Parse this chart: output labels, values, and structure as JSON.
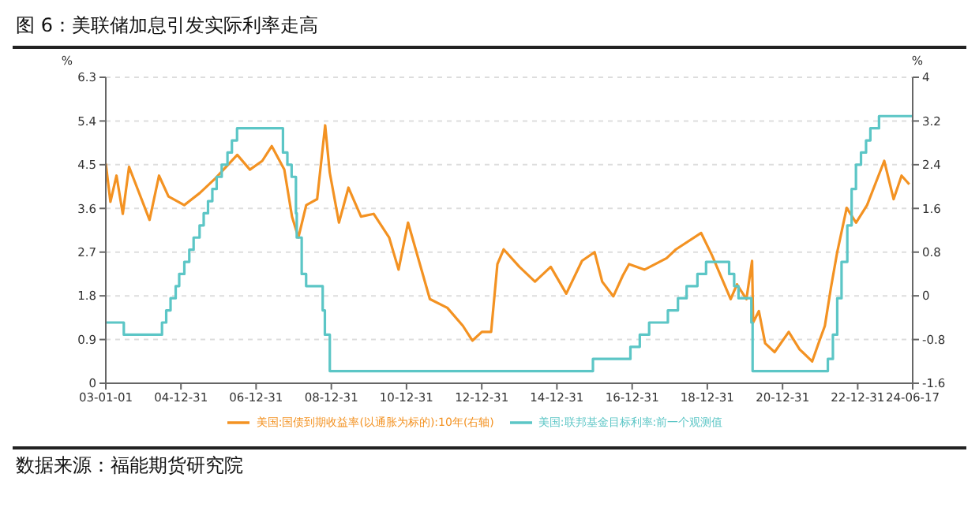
{
  "chart_data": {
    "type": "line",
    "title": "图 6：美联储加息引发实际利率走高",
    "ylabel": "%",
    "y2label": "%",
    "annotations": [
      "数据来源：福能期货研究院"
    ],
    "xlim": [
      "2003-01-01",
      "2024-06-17"
    ],
    "xticks": [
      {
        "value": "2003-01-01",
        "label": "03-01-01"
      },
      {
        "value": "2004-12-31",
        "label": "04-12-31"
      },
      {
        "value": "2006-12-31",
        "label": "06-12-31"
      },
      {
        "value": "2008-12-31",
        "label": "08-12-31"
      },
      {
        "value": "2010-12-31",
        "label": "10-12-31"
      },
      {
        "value": "2012-12-31",
        "label": "12-12-31"
      },
      {
        "value": "2014-12-31",
        "label": "14-12-31"
      },
      {
        "value": "2016-12-31",
        "label": "16-12-31"
      },
      {
        "value": "2018-12-31",
        "label": "18-12-31"
      },
      {
        "value": "2020-12-31",
        "label": "20-12-31"
      },
      {
        "value": "2022-12-31",
        "label": "22-12-31"
      },
      {
        "value": "2024-06-17",
        "label": "24-06-17"
      }
    ],
    "ylim": [
      0,
      6.3
    ],
    "yticks": [
      0,
      0.9,
      1.8,
      2.7,
      3.6,
      4.5,
      5.4,
      6.3
    ],
    "y2lim": [
      -1.6,
      4
    ],
    "y2ticks": [
      -1.6,
      -0.8,
      0,
      0.8,
      1.6,
      2.4,
      3.2,
      4
    ],
    "grid": "y",
    "legend": "bottom",
    "marker": "none",
    "line_style": "solid",
    "series": [
      {
        "name": "美国:国债到期收益率(以通胀为标的):10年(右轴)",
        "type": "line",
        "axis": "y2",
        "color": "#f39222",
        "x": [
          "2003-01-01",
          "2003-02-15",
          "2003-04-15",
          "2003-06-15",
          "2003-08-15",
          "2003-11-01",
          "2004-03-01",
          "2004-06-01",
          "2004-09-01",
          "2005-02-01",
          "2005-07-01",
          "2005-12-01",
          "2006-07-01",
          "2006-11-01",
          "2007-03-01",
          "2007-06-01",
          "2007-10-01",
          "2007-12-15",
          "2008-02-15",
          "2008-05-01",
          "2008-08-15",
          "2008-11-01",
          "2008-12-15",
          "2009-03-15",
          "2009-06-15",
          "2009-10-15",
          "2010-02-15",
          "2010-07-15",
          "2010-10-15",
          "2011-01-15",
          "2011-08-15",
          "2012-02-01",
          "2012-07-01",
          "2012-10-01",
          "2013-01-01",
          "2013-04-01",
          "2013-06-01",
          "2013-08-01",
          "2014-01-01",
          "2014-06-01",
          "2014-11-01",
          "2015-04-01",
          "2015-09-01",
          "2016-01-01",
          "2016-03-15",
          "2016-07-01",
          "2016-10-01",
          "2016-12-01",
          "2017-05-01",
          "2017-12-01",
          "2018-03-01",
          "2018-11-01",
          "2019-02-15",
          "2019-08-15",
          "2019-10-15",
          "2020-01-15",
          "2020-03-10",
          "2020-03-20",
          "2020-05-15",
          "2020-07-15",
          "2020-10-15",
          "2021-03-01",
          "2021-06-15",
          "2021-10-15",
          "2021-12-15",
          "2022-02-15",
          "2022-04-15",
          "2022-06-15",
          "2022-09-15",
          "2022-12-15",
          "2023-04-01",
          "2023-09-15",
          "2023-12-15",
          "2024-03-01",
          "2024-05-15"
        ],
        "values": [
          2.42,
          1.72,
          2.2,
          1.5,
          2.36,
          1.98,
          1.39,
          2.2,
          1.82,
          1.66,
          1.88,
          2.15,
          2.58,
          2.31,
          2.47,
          2.74,
          2.31,
          1.45,
          1.07,
          1.66,
          1.77,
          3.12,
          2.26,
          1.34,
          1.98,
          1.45,
          1.5,
          1.07,
          0.48,
          1.34,
          -0.06,
          -0.22,
          -0.55,
          -0.82,
          -0.66,
          -0.66,
          0.58,
          0.85,
          0.53,
          0.26,
          0.53,
          0.04,
          0.64,
          0.8,
          0.26,
          -0.01,
          0.37,
          0.58,
          0.48,
          0.69,
          0.85,
          1.15,
          0.74,
          -0.06,
          0.21,
          -0.06,
          0.64,
          -0.49,
          -0.28,
          -0.87,
          -1.03,
          -0.66,
          -0.98,
          -1.2,
          -0.87,
          -0.55,
          0.15,
          0.8,
          1.61,
          1.34,
          1.66,
          2.47,
          1.77,
          2.2,
          2.04
        ]
      },
      {
        "name": "美国:联邦基金目标利率:前一个观测值",
        "type": "step",
        "color": "#5cc6c6",
        "x": [
          "2003-01-01",
          "2003-06-25",
          "2004-06-30",
          "2004-08-10",
          "2004-09-21",
          "2004-11-10",
          "2004-12-14",
          "2005-02-02",
          "2005-03-22",
          "2005-05-03",
          "2005-06-30",
          "2005-08-09",
          "2005-09-20",
          "2005-11-01",
          "2005-12-13",
          "2006-01-31",
          "2006-03-28",
          "2006-05-10",
          "2006-06-29",
          "2007-09-18",
          "2007-10-31",
          "2007-12-11",
          "2008-01-22",
          "2008-01-30",
          "2008-03-18",
          "2008-04-30",
          "2008-10-08",
          "2008-10-29",
          "2008-12-16",
          "2015-12-16",
          "2016-12-14",
          "2017-03-15",
          "2017-06-14",
          "2017-12-13",
          "2018-03-21",
          "2018-06-13",
          "2018-09-26",
          "2018-12-19",
          "2019-07-31",
          "2019-09-18",
          "2019-10-30",
          "2020-03-03",
          "2020-03-15",
          "2022-03-16",
          "2022-05-04",
          "2022-06-15",
          "2022-07-27",
          "2022-09-21",
          "2022-11-02",
          "2022-12-14",
          "2023-02-01",
          "2023-03-22",
          "2023-05-03",
          "2023-07-26",
          "2024-06-17"
        ],
        "values": [
          1.25,
          1.0,
          1.25,
          1.5,
          1.75,
          2.0,
          2.25,
          2.5,
          2.75,
          3.0,
          3.25,
          3.5,
          3.75,
          4.0,
          4.25,
          4.5,
          4.75,
          5.0,
          5.25,
          4.75,
          4.5,
          4.25,
          3.5,
          3.0,
          2.25,
          2.0,
          1.5,
          1.0,
          0.25,
          0.5,
          0.75,
          1.0,
          1.25,
          1.5,
          1.75,
          2.0,
          2.25,
          2.5,
          2.25,
          2.0,
          1.75,
          1.25,
          0.25,
          0.5,
          1.0,
          1.75,
          2.5,
          3.25,
          4.0,
          4.5,
          4.75,
          5.0,
          5.25,
          5.5,
          5.5
        ]
      }
    ]
  }
}
